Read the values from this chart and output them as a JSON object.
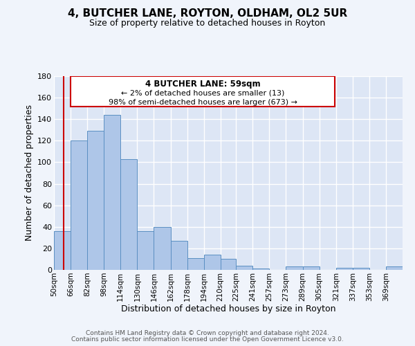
{
  "title": "4, BUTCHER LANE, ROYTON, OLDHAM, OL2 5UR",
  "subtitle": "Size of property relative to detached houses in Royton",
  "xlabel": "Distribution of detached houses by size in Royton",
  "ylabel": "Number of detached properties",
  "bar_color": "#aec6e8",
  "bar_edge_color": "#5a8fc2",
  "background_color": "#dde6f5",
  "grid_color": "#ffffff",
  "property_line_color": "#cc0000",
  "annotation_border_color": "#cc0000",
  "bin_labels": [
    "50sqm",
    "66sqm",
    "82sqm",
    "98sqm",
    "114sqm",
    "130sqm",
    "146sqm",
    "162sqm",
    "178sqm",
    "194sqm",
    "210sqm",
    "225sqm",
    "241sqm",
    "257sqm",
    "273sqm",
    "289sqm",
    "305sqm",
    "321sqm",
    "337sqm",
    "353sqm",
    "369sqm"
  ],
  "bar_heights": [
    36,
    120,
    129,
    144,
    103,
    36,
    40,
    27,
    11,
    14,
    10,
    4,
    1,
    0,
    3,
    3,
    0,
    2,
    2,
    0,
    3
  ],
  "bin_edges": [
    50,
    66,
    82,
    98,
    114,
    130,
    146,
    162,
    178,
    194,
    210,
    225,
    241,
    257,
    273,
    289,
    305,
    321,
    337,
    353,
    369,
    385
  ],
  "ylim": [
    0,
    180
  ],
  "yticks": [
    0,
    20,
    40,
    60,
    80,
    100,
    120,
    140,
    160,
    180
  ],
  "property_sqm": 59,
  "annotation_title": "4 BUTCHER LANE: 59sqm",
  "annotation_line1": "← 2% of detached houses are smaller (13)",
  "annotation_line2": "98% of semi-detached houses are larger (673) →",
  "footer_line1": "Contains HM Land Registry data © Crown copyright and database right 2024.",
  "footer_line2": "Contains public sector information licensed under the Open Government Licence v3.0.",
  "fig_bg": "#f0f4fb"
}
